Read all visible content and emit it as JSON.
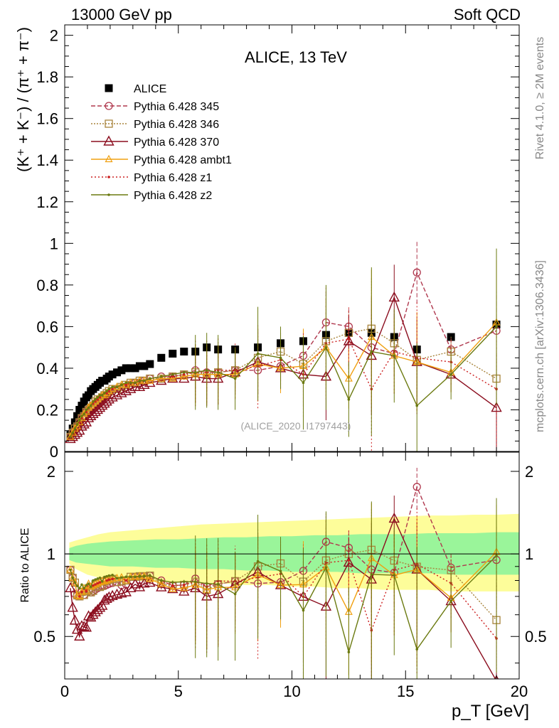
{
  "header": {
    "left": "13000 GeV pp",
    "right": "Soft QCD"
  },
  "side_labels": {
    "rivet": "Rivet 4.1.0, ≥ 2M events",
    "mcplots": "mcplots.cern.ch [arXiv:1306.3436]"
  },
  "colors": {
    "data": "#000000",
    "p345": "#b0384e",
    "p346": "#a8843c",
    "p370": "#8b0d1e",
    "ambt1": "#f0a010",
    "z1": "#cc2020",
    "z2": "#6b7a10",
    "band_outer": "#fdfd9a",
    "band_inner": "#9af59a"
  },
  "chart_data": [
    {
      "type": "scatter",
      "title": "ALICE, 13 TeV",
      "watermark": "(ALICE_2020_I1797443)",
      "xlabel": "p_T [GeV]",
      "ylabel": "(K⁺ + K⁻) / (π⁺ + π⁻)",
      "xlim": [
        0,
        20
      ],
      "ylim": [
        0,
        2.05
      ],
      "yticks": [
        "0",
        "0.2",
        "0.4",
        "0.6",
        "0.8",
        "1",
        "1.2",
        "1.4",
        "1.6",
        "1.8",
        "2"
      ],
      "xticks": [
        "0",
        "5",
        "10",
        "15",
        "20"
      ],
      "x": [
        0.25,
        0.35,
        0.45,
        0.55,
        0.65,
        0.75,
        0.85,
        0.95,
        1.05,
        1.15,
        1.25,
        1.35,
        1.45,
        1.55,
        1.65,
        1.75,
        1.85,
        1.95,
        2.1,
        2.3,
        2.5,
        2.7,
        2.9,
        3.1,
        3.3,
        3.5,
        3.75,
        4.25,
        4.75,
        5.25,
        5.75,
        6.25,
        6.75,
        7.5,
        8.5,
        9.5,
        10.5,
        11.5,
        12.5,
        13.5,
        14.5,
        15.5,
        17.0,
        19.0
      ],
      "series": [
        {
          "name": "ALICE",
          "key": "data",
          "marker": "square",
          "values": [
            0.08,
            0.11,
            0.14,
            0.17,
            0.2,
            0.22,
            0.24,
            0.26,
            0.27,
            0.29,
            0.3,
            0.31,
            0.32,
            0.33,
            0.34,
            0.34,
            0.35,
            0.36,
            0.37,
            0.38,
            0.39,
            0.4,
            0.4,
            0.4,
            0.41,
            0.41,
            0.42,
            0.45,
            0.47,
            0.48,
            0.48,
            0.5,
            0.49,
            0.49,
            0.5,
            0.52,
            0.53,
            0.56,
            0.57,
            0.57,
            0.55,
            0.49,
            0.55,
            0.61
          ]
        },
        {
          "name": "Pythia 6.428 345",
          "key": "p345",
          "marker": "circle",
          "dash": "6,3",
          "values": [
            0.07,
            0.09,
            0.1,
            0.12,
            0.14,
            0.16,
            0.17,
            0.19,
            0.2,
            0.21,
            0.22,
            0.23,
            0.24,
            0.25,
            0.26,
            0.26,
            0.27,
            0.28,
            0.29,
            0.3,
            0.3,
            0.31,
            0.32,
            0.33,
            0.33,
            0.34,
            0.35,
            0.36,
            0.36,
            0.37,
            0.39,
            0.38,
            0.38,
            0.39,
            0.39,
            0.41,
            0.46,
            0.62,
            0.6,
            0.5,
            0.47,
            0.86,
            0.49,
            0.58
          ]
        },
        {
          "name": "Pythia 6.428 346",
          "key": "p346",
          "marker": "square-open",
          "dash": "2,2",
          "values": [
            0.07,
            0.09,
            0.11,
            0.12,
            0.14,
            0.16,
            0.17,
            0.19,
            0.2,
            0.21,
            0.22,
            0.24,
            0.25,
            0.25,
            0.26,
            0.27,
            0.28,
            0.29,
            0.3,
            0.3,
            0.31,
            0.32,
            0.33,
            0.33,
            0.34,
            0.34,
            0.35,
            0.35,
            0.36,
            0.37,
            0.38,
            0.37,
            0.38,
            0.39,
            0.45,
            0.48,
            0.42,
            0.53,
            0.57,
            0.59,
            0.52,
            0.44,
            0.48,
            0.35
          ]
        },
        {
          "name": "Pythia 6.428 370",
          "key": "p370",
          "marker": "triangle",
          "dash": "",
          "values": [
            0.06,
            0.07,
            0.08,
            0.09,
            0.1,
            0.12,
            0.13,
            0.14,
            0.16,
            0.17,
            0.18,
            0.19,
            0.2,
            0.21,
            0.22,
            0.23,
            0.24,
            0.25,
            0.26,
            0.27,
            0.28,
            0.29,
            0.3,
            0.31,
            0.31,
            0.32,
            0.33,
            0.34,
            0.35,
            0.35,
            0.36,
            0.35,
            0.35,
            0.38,
            0.43,
            0.4,
            0.37,
            0.36,
            0.53,
            0.46,
            0.74,
            0.43,
            0.37,
            0.21
          ]
        },
        {
          "name": "Pythia 6.428 ambt1",
          "key": "ambt1",
          "marker": "triangle-small",
          "dash": "",
          "values": [
            0.07,
            0.09,
            0.11,
            0.12,
            0.14,
            0.16,
            0.18,
            0.19,
            0.21,
            0.22,
            0.23,
            0.24,
            0.25,
            0.26,
            0.27,
            0.27,
            0.28,
            0.29,
            0.3,
            0.31,
            0.32,
            0.32,
            0.33,
            0.33,
            0.34,
            0.34,
            0.34,
            0.35,
            0.35,
            0.36,
            0.37,
            0.37,
            0.37,
            0.37,
            0.42,
            0.4,
            0.41,
            0.5,
            0.35,
            0.55,
            0.46,
            0.43,
            0.38,
            0.62
          ]
        },
        {
          "name": "Pythia 6.428 z1",
          "key": "z1",
          "marker": "dot",
          "dash": "2,3",
          "values": [
            0.07,
            0.09,
            0.11,
            0.13,
            0.14,
            0.16,
            0.18,
            0.19,
            0.21,
            0.22,
            0.23,
            0.24,
            0.25,
            0.26,
            0.27,
            0.28,
            0.28,
            0.29,
            0.3,
            0.31,
            0.32,
            0.32,
            0.33,
            0.33,
            0.34,
            0.34,
            0.35,
            0.36,
            0.36,
            0.37,
            0.38,
            0.38,
            0.39,
            0.39,
            0.41,
            0.44,
            0.37,
            0.52,
            0.54,
            0.3,
            0.48,
            0.45,
            0.43,
            0.3
          ]
        },
        {
          "name": "Pythia 6.428 z2",
          "key": "z2",
          "marker": "dot",
          "dash": "",
          "values": [
            0.07,
            0.09,
            0.11,
            0.13,
            0.15,
            0.17,
            0.18,
            0.2,
            0.21,
            0.22,
            0.24,
            0.25,
            0.26,
            0.27,
            0.27,
            0.28,
            0.29,
            0.3,
            0.31,
            0.31,
            0.32,
            0.33,
            0.33,
            0.33,
            0.34,
            0.34,
            0.35,
            0.36,
            0.37,
            0.38,
            0.38,
            0.39,
            0.38,
            0.35,
            0.47,
            0.45,
            0.33,
            0.5,
            0.25,
            0.48,
            0.46,
            0.22,
            0.37,
            0.6
          ]
        }
      ],
      "errors": {
        "mc_large": [
          0.12,
          0.12,
          0.12,
          0.1,
          0.15,
          0.1,
          0.15,
          0.2,
          0.12,
          0.27,
          0.15,
          0.2,
          0.08,
          0.25
        ],
        "mc_large_from_index": 30
      }
    },
    {
      "type": "line",
      "title": "Ratio to ALICE",
      "ylabel": "Ratio to ALICE",
      "xlim": [
        0,
        20
      ],
      "ylim": [
        0.35,
        2.35
      ],
      "yscale": "log",
      "yticks": [
        "0.5",
        "1",
        "2"
      ],
      "reference_line": 1,
      "band_x": [
        0.2,
        0.5,
        1,
        1.5,
        2,
        3,
        4,
        5,
        6,
        7,
        8,
        9,
        10,
        11,
        12,
        13,
        14,
        15,
        16,
        17,
        18,
        19,
        20
      ],
      "band_outer_low": [
        0.92,
        0.88,
        0.84,
        0.82,
        0.8,
        0.8,
        0.79,
        0.79,
        0.78,
        0.78,
        0.77,
        0.77,
        0.76,
        0.76,
        0.75,
        0.75,
        0.74,
        0.74,
        0.74,
        0.73,
        0.73,
        0.73,
        0.73
      ],
      "band_outer_high": [
        1.1,
        1.12,
        1.15,
        1.18,
        1.2,
        1.22,
        1.24,
        1.26,
        1.28,
        1.29,
        1.3,
        1.31,
        1.32,
        1.33,
        1.34,
        1.35,
        1.36,
        1.37,
        1.38,
        1.38,
        1.39,
        1.39,
        1.4
      ],
      "band_inner_low": [
        0.95,
        0.93,
        0.92,
        0.91,
        0.9,
        0.9,
        0.89,
        0.89,
        0.88,
        0.88,
        0.87,
        0.87,
        0.86,
        0.86,
        0.86,
        0.85,
        0.85,
        0.85,
        0.85,
        0.84,
        0.84,
        0.84,
        0.84
      ],
      "band_inner_high": [
        1.05,
        1.07,
        1.09,
        1.1,
        1.11,
        1.12,
        1.13,
        1.13,
        1.14,
        1.15,
        1.15,
        1.16,
        1.16,
        1.17,
        1.17,
        1.18,
        1.18,
        1.18,
        1.19,
        1.19,
        1.19,
        1.2,
        1.2
      ]
    }
  ]
}
